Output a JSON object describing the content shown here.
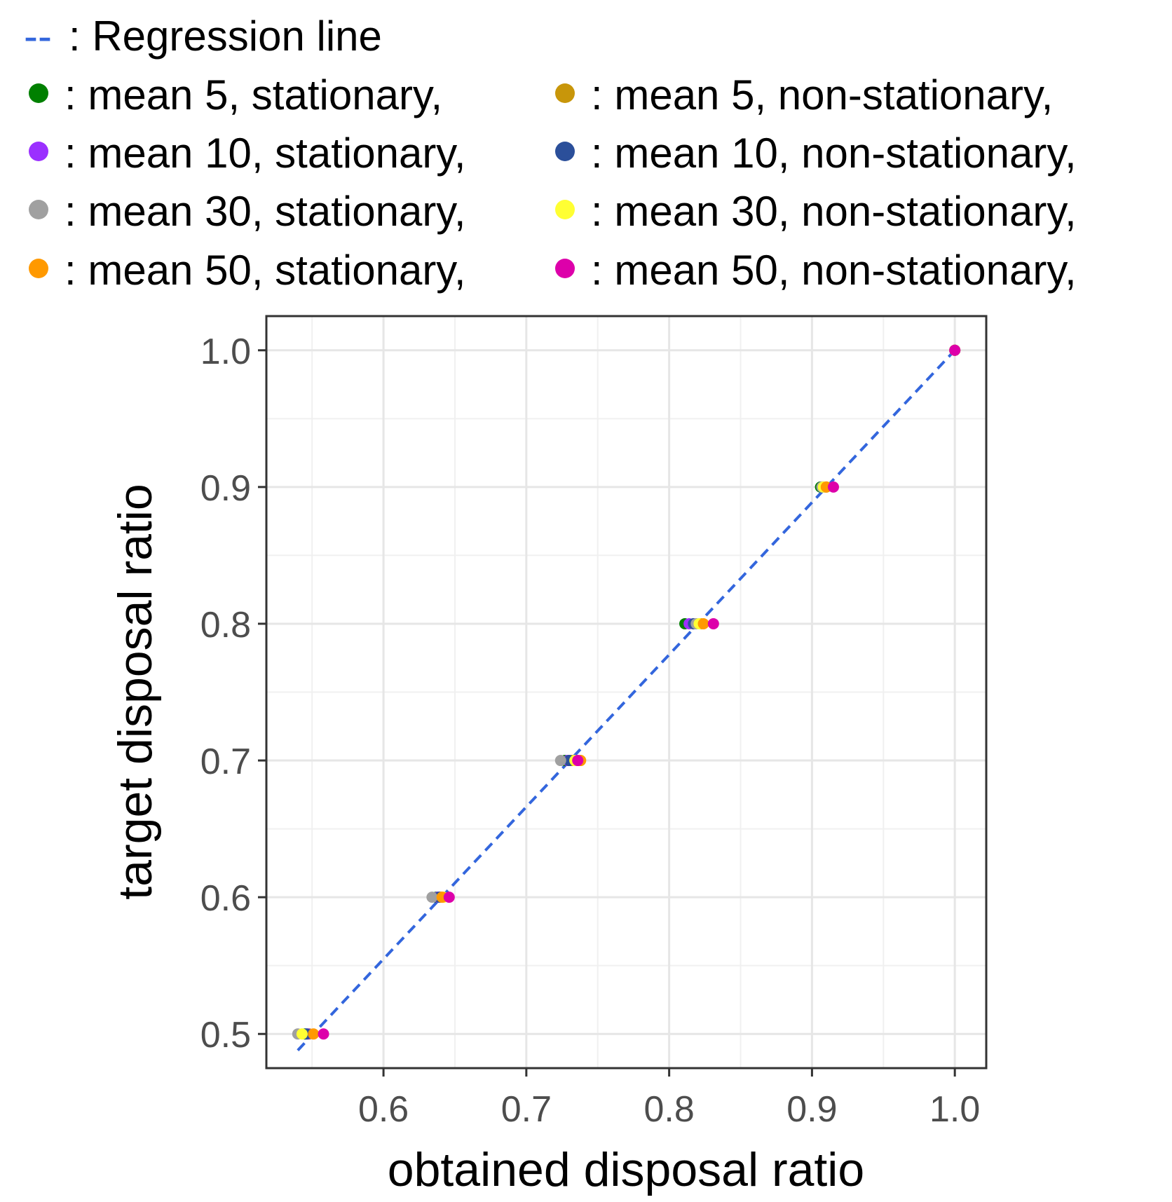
{
  "chart_data": {
    "type": "scatter",
    "xlabel": "obtained disposal ratio",
    "ylabel": "target disposal ratio",
    "xlim": [
      0.518,
      1.022
    ],
    "ylim": [
      0.475,
      1.025
    ],
    "xticks": [
      0.6,
      0.7,
      0.8,
      0.9,
      1.0
    ],
    "xtick_labels": [
      "0.6",
      "0.7",
      "0.8",
      "0.9",
      "1.0"
    ],
    "yticks": [
      0.5,
      0.6,
      0.7,
      0.8,
      0.9,
      1.0
    ],
    "ytick_labels": [
      "0.5",
      "0.6",
      "0.7",
      "0.8",
      "0.9",
      "1.0"
    ],
    "grid": true,
    "regression_line": {
      "label": ": Regression line",
      "symbol": "--",
      "color": "#3366dd",
      "style": "dashed",
      "x": [
        0.54,
        1.0
      ],
      "y": [
        0.488,
        1.0
      ]
    },
    "legend_position": "top",
    "series": [
      {
        "name": ": mean 5, stationary,",
        "color": "#008000",
        "x": [
          0.545,
          0.637,
          0.727,
          0.811,
          0.906,
          1.0
        ],
        "y": [
          0.5,
          0.6,
          0.7,
          0.8,
          0.9,
          1.0
        ]
      },
      {
        "name": ": mean 5, non-stationary,",
        "color": "#c8960a",
        "x": [
          0.548,
          0.64,
          0.732,
          0.822,
          0.91,
          1.0
        ],
        "y": [
          0.5,
          0.6,
          0.7,
          0.8,
          0.9,
          1.0
        ]
      },
      {
        "name": ": mean 10, stationary,",
        "color": "#9b30ff",
        "x": [
          0.547,
          0.638,
          0.729,
          0.814,
          0.907,
          1.0
        ],
        "y": [
          0.5,
          0.6,
          0.7,
          0.8,
          0.9,
          1.0
        ]
      },
      {
        "name": ": mean 10, non-stationary,",
        "color": "#2b4f9a",
        "x": [
          0.546,
          0.639,
          0.73,
          0.817,
          0.908,
          1.0
        ],
        "y": [
          0.5,
          0.6,
          0.7,
          0.8,
          0.9,
          1.0
        ]
      },
      {
        "name": ": mean 30, stationary,",
        "color": "#a0a0a0",
        "x": [
          0.54,
          0.634,
          0.724,
          0.819,
          0.907,
          1.0
        ],
        "y": [
          0.5,
          0.6,
          0.7,
          0.8,
          0.9,
          1.0
        ]
      },
      {
        "name": ": mean 30, non-stationary,",
        "color": "#ffff33",
        "x": [
          0.543,
          0.642,
          0.734,
          0.821,
          0.908,
          1.0
        ],
        "y": [
          0.5,
          0.6,
          0.7,
          0.8,
          0.9,
          1.0
        ]
      },
      {
        "name": ": mean 50, stationary,",
        "color": "#ff9900",
        "x": [
          0.551,
          0.641,
          0.738,
          0.824,
          0.91,
          1.0
        ],
        "y": [
          0.5,
          0.6,
          0.7,
          0.8,
          0.9,
          1.0
        ]
      },
      {
        "name": ": mean 50, non-stationary,",
        "color": "#dd00aa",
        "x": [
          0.558,
          0.646,
          0.736,
          0.831,
          0.915,
          1.0
        ],
        "y": [
          0.5,
          0.6,
          0.7,
          0.8,
          0.9,
          1.0
        ]
      }
    ]
  }
}
